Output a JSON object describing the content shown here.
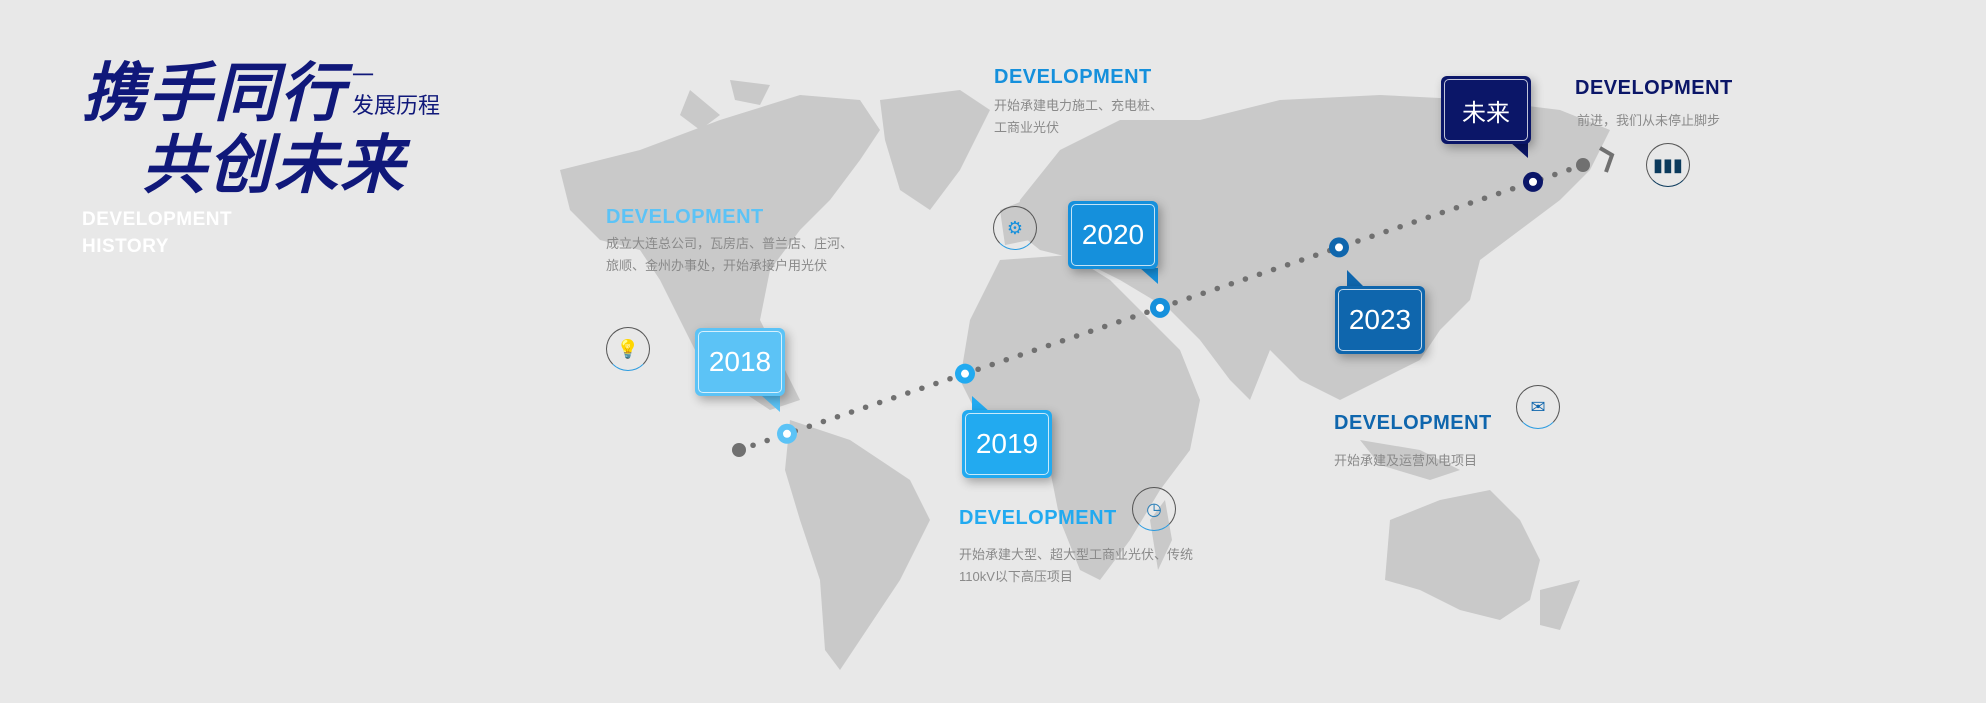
{
  "header": {
    "title_line1": "携手同行",
    "title_line2": "共创未来",
    "dash": "一",
    "subtitle": "发展历程",
    "english_line1": "DEVELOPMENT",
    "english_line2": "HISTORY"
  },
  "colors": {
    "c2018": "#5cc3f6",
    "c2019": "#22aaf0",
    "c2020": "#1590dc",
    "c2023": "#0f66ad",
    "future": "#0b1668",
    "map": "#c9c9c9",
    "dots": "#707070"
  },
  "milestones": [
    {
      "year": "2018",
      "heading": "DEVELOPMENT",
      "desc1": "成立大连总公司，瓦房店、普兰店、庄河、",
      "desc2": "旅顺、金州办事处，开始承接户用光伏",
      "icon": "lightbulb-icon"
    },
    {
      "year": "2019",
      "heading": "DEVELOPMENT",
      "desc1": "开始承建大型、超大型工商业光伏、传统",
      "desc2": "110kV以下高压项目",
      "icon": "clock-icon"
    },
    {
      "year": "2020",
      "heading": "DEVELOPMENT",
      "desc1": "开始承建电力施工、充电桩、",
      "desc2": "工商业光伏",
      "icon": "gear-icon"
    },
    {
      "year": "2023",
      "heading": "DEVELOPMENT",
      "desc1": "开始承建及运营风电项目",
      "icon": "mail-icon"
    },
    {
      "year": "未来",
      "heading": "DEVELOPMENT",
      "desc1": "前进，我们从未停止脚步",
      "icon": "bar-chart-icon"
    }
  ]
}
